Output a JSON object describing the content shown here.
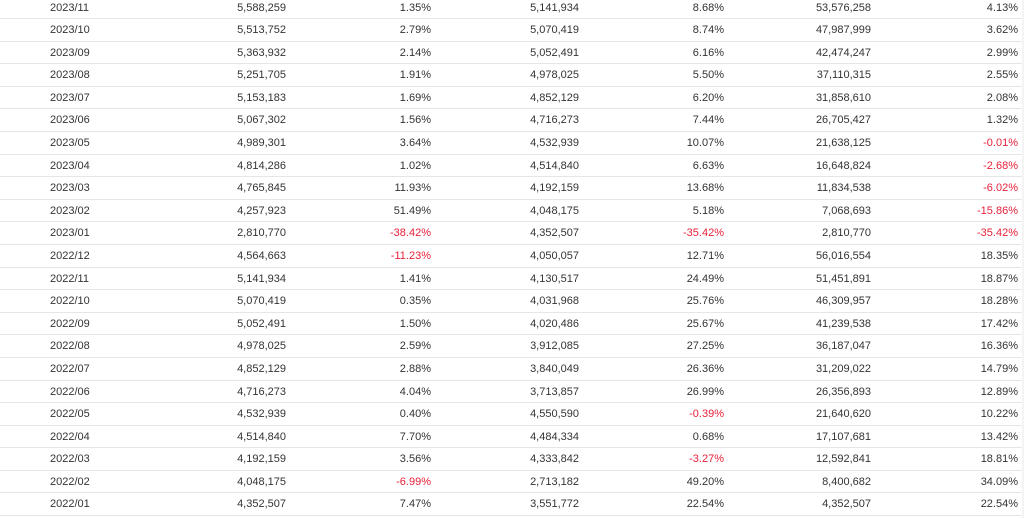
{
  "rows": [
    [
      "2023/11",
      "5,588,259",
      "1.35%",
      "5,141,934",
      "8.68%",
      "53,576,258",
      "4.13%"
    ],
    [
      "2023/10",
      "5,513,752",
      "2.79%",
      "5,070,419",
      "8.74%",
      "47,987,999",
      "3.62%"
    ],
    [
      "2023/09",
      "5,363,932",
      "2.14%",
      "5,052,491",
      "6.16%",
      "42,474,247",
      "2.99%"
    ],
    [
      "2023/08",
      "5,251,705",
      "1.91%",
      "4,978,025",
      "5.50%",
      "37,110,315",
      "2.55%"
    ],
    [
      "2023/07",
      "5,153,183",
      "1.69%",
      "4,852,129",
      "6.20%",
      "31,858,610",
      "2.08%"
    ],
    [
      "2023/06",
      "5,067,302",
      "1.56%",
      "4,716,273",
      "7.44%",
      "26,705,427",
      "1.32%"
    ],
    [
      "2023/05",
      "4,989,301",
      "3.64%",
      "4,532,939",
      "10.07%",
      "21,638,125",
      "-0.01%"
    ],
    [
      "2023/04",
      "4,814,286",
      "1.02%",
      "4,514,840",
      "6.63%",
      "16,648,824",
      "-2.68%"
    ],
    [
      "2023/03",
      "4,765,845",
      "11.93%",
      "4,192,159",
      "13.68%",
      "11,834,538",
      "-6.02%"
    ],
    [
      "2023/02",
      "4,257,923",
      "51.49%",
      "4,048,175",
      "5.18%",
      "7,068,693",
      "-15.86%"
    ],
    [
      "2023/01",
      "2,810,770",
      "-38.42%",
      "4,352,507",
      "-35.42%",
      "2,810,770",
      "-35.42%"
    ],
    [
      "2022/12",
      "4,564,663",
      "-11.23%",
      "4,050,057",
      "12.71%",
      "56,016,554",
      "18.35%"
    ],
    [
      "2022/11",
      "5,141,934",
      "1.41%",
      "4,130,517",
      "24.49%",
      "51,451,891",
      "18.87%"
    ],
    [
      "2022/10",
      "5,070,419",
      "0.35%",
      "4,031,968",
      "25.76%",
      "46,309,957",
      "18.28%"
    ],
    [
      "2022/09",
      "5,052,491",
      "1.50%",
      "4,020,486",
      "25.67%",
      "41,239,538",
      "17.42%"
    ],
    [
      "2022/08",
      "4,978,025",
      "2.59%",
      "3,912,085",
      "27.25%",
      "36,187,047",
      "16.36%"
    ],
    [
      "2022/07",
      "4,852,129",
      "2.88%",
      "3,840,049",
      "26.36%",
      "31,209,022",
      "14.79%"
    ],
    [
      "2022/06",
      "4,716,273",
      "4.04%",
      "3,713,857",
      "26.99%",
      "26,356,893",
      "12.89%"
    ],
    [
      "2022/05",
      "4,532,939",
      "0.40%",
      "4,550,590",
      "-0.39%",
      "21,640,620",
      "10.22%"
    ],
    [
      "2022/04",
      "4,514,840",
      "7.70%",
      "4,484,334",
      "0.68%",
      "17,107,681",
      "13.42%"
    ],
    [
      "2022/03",
      "4,192,159",
      "3.56%",
      "4,333,842",
      "-3.27%",
      "12,592,841",
      "18.81%"
    ],
    [
      "2022/02",
      "4,048,175",
      "-6.99%",
      "2,713,182",
      "49.20%",
      "8,400,682",
      "34.09%"
    ],
    [
      "2022/01",
      "4,352,507",
      "7.47%",
      "3,551,772",
      "22.54%",
      "4,352,507",
      "22.54%"
    ]
  ],
  "colors": {
    "text": "#333333",
    "negative": "#e8213a",
    "divider": "#e6e6e6"
  }
}
